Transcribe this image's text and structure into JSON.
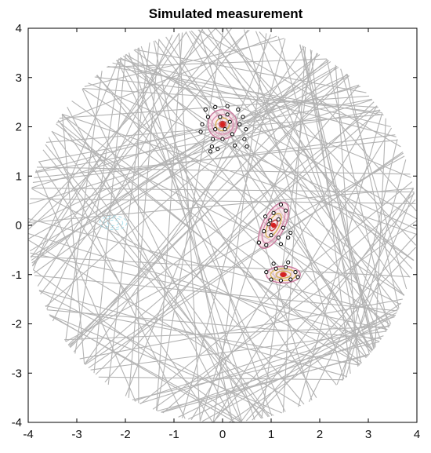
{
  "chart_data": {
    "type": "scatter",
    "title": "Simulated measurement",
    "xlabel": "",
    "ylabel": "",
    "xlim": [
      -4,
      4
    ],
    "ylim": [
      -4,
      4
    ],
    "xticks": [
      -4,
      -3,
      -2,
      -1,
      0,
      1,
      2,
      3,
      4
    ],
    "yticks": [
      -4,
      -3,
      -2,
      -1,
      0,
      1,
      2,
      3,
      4
    ],
    "grid": false,
    "legend": "none",
    "measurement_region": {
      "shape": "disk",
      "center": [
        0,
        0
      ],
      "radius": 4
    },
    "colors": {
      "lines": "#b3b3b3",
      "points": "#000000",
      "contour_outer": "#c97a9e",
      "contour_inner": "#d9b45a",
      "center": "#d62020",
      "faint_artifact": "#9ad9e8"
    },
    "sources": [
      {
        "center": [
          0.0,
          2.05
        ],
        "contours": [
          {
            "rx": 0.3,
            "ry": 0.3,
            "angle": 0,
            "color": "#c97a9e"
          },
          {
            "rx": 0.22,
            "ry": 0.2,
            "angle": 0,
            "color": "#d98fb0"
          },
          {
            "rx": 0.14,
            "ry": 0.13,
            "angle": 0,
            "color": "#d9b45a"
          },
          {
            "rx": 0.07,
            "ry": 0.06,
            "angle": 0,
            "color": "#c03a3a"
          }
        ],
        "points": [
          [
            -0.35,
            2.35
          ],
          [
            -0.15,
            2.4
          ],
          [
            0.1,
            2.42
          ],
          [
            0.32,
            2.35
          ],
          [
            0.42,
            2.2
          ],
          [
            -0.42,
            2.05
          ],
          [
            -0.45,
            1.9
          ],
          [
            0.48,
            1.95
          ],
          [
            0.45,
            1.75
          ],
          [
            -0.22,
            1.6
          ],
          [
            -0.1,
            1.55
          ],
          [
            0.25,
            1.62
          ],
          [
            0.5,
            1.6
          ],
          [
            -0.25,
            1.5
          ],
          [
            0.05,
            1.95
          ],
          [
            0.15,
            2.1
          ],
          [
            -0.05,
            2.2
          ],
          [
            0.2,
            1.85
          ],
          [
            -0.15,
            1.95
          ],
          [
            0.35,
            2.05
          ],
          [
            -0.3,
            2.2
          ],
          [
            0.0,
            1.75
          ],
          [
            0.1,
            2.25
          ],
          [
            -0.2,
            1.75
          ]
        ]
      },
      {
        "center": [
          1.05,
          0.0
        ],
        "contours": [
          {
            "rx": 0.52,
            "ry": 0.22,
            "angle": 62,
            "color": "#c97a9e"
          },
          {
            "rx": 0.4,
            "ry": 0.16,
            "angle": 62,
            "color": "#d98fb0"
          },
          {
            "rx": 0.27,
            "ry": 0.11,
            "angle": 62,
            "color": "#d9b45a"
          },
          {
            "rx": 0.12,
            "ry": 0.06,
            "angle": 62,
            "color": "#c03a3a"
          }
        ],
        "points": [
          [
            1.2,
            0.42
          ],
          [
            1.3,
            0.3
          ],
          [
            0.88,
            0.18
          ],
          [
            1.05,
            0.25
          ],
          [
            1.15,
            0.12
          ],
          [
            0.95,
            0.02
          ],
          [
            1.25,
            -0.05
          ],
          [
            0.85,
            -0.12
          ],
          [
            1.0,
            -0.2
          ],
          [
            1.15,
            -0.25
          ],
          [
            0.75,
            -0.35
          ],
          [
            0.9,
            -0.4
          ],
          [
            1.35,
            -0.25
          ],
          [
            1.2,
            -0.38
          ],
          [
            0.98,
            0.1
          ],
          [
            1.4,
            -0.15
          ]
        ]
      },
      {
        "center": [
          1.25,
          -1.0
        ],
        "contours": [
          {
            "rx": 0.35,
            "ry": 0.17,
            "angle": 0,
            "color": "#c97a9e"
          },
          {
            "rx": 0.26,
            "ry": 0.12,
            "angle": 0,
            "color": "#e0c060"
          },
          {
            "rx": 0.15,
            "ry": 0.07,
            "angle": 0,
            "color": "#d9b45a"
          },
          {
            "rx": 0.06,
            "ry": 0.04,
            "angle": 0,
            "color": "#c03a3a"
          }
        ],
        "points": [
          [
            0.9,
            -0.95
          ],
          [
            1.0,
            -1.1
          ],
          [
            1.1,
            -0.88
          ],
          [
            1.3,
            -0.85
          ],
          [
            1.5,
            -0.95
          ],
          [
            1.4,
            -1.1
          ],
          [
            1.2,
            -1.12
          ],
          [
            1.35,
            -0.75
          ],
          [
            1.05,
            -0.78
          ],
          [
            1.55,
            -1.05
          ]
        ]
      }
    ],
    "artifact": {
      "center": [
        -2.25,
        0.05
      ],
      "rx": 0.28,
      "ry": 0.14
    }
  }
}
